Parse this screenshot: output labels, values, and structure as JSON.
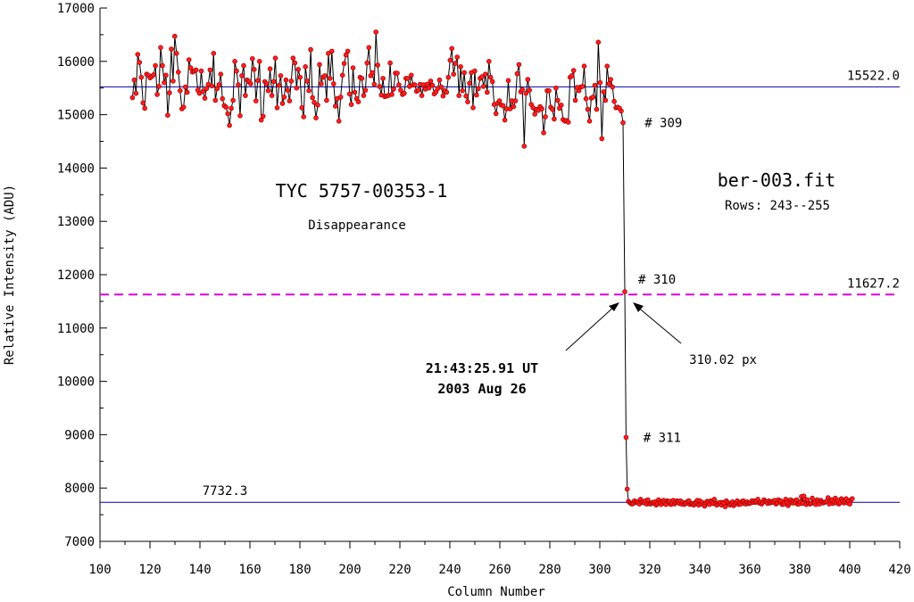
{
  "chart_data": {
    "type": "line",
    "title": "TYC 5757-00353-1",
    "subtitle": "Disappearance",
    "file_label": "ber-003.fit",
    "rows_label": "Rows: 243--255",
    "xlabel": "Column Number",
    "ylabel": "Relative Intensity (ADU)",
    "xlim": [
      100,
      420
    ],
    "ylim": [
      7000,
      17000
    ],
    "xticks": [
      100,
      120,
      140,
      160,
      180,
      200,
      220,
      240,
      260,
      280,
      300,
      320,
      340,
      360,
      380,
      400,
      420
    ],
    "yticks": [
      7000,
      8000,
      9000,
      10000,
      11000,
      12000,
      13000,
      14000,
      15000,
      16000,
      17000
    ],
    "grid": false,
    "series": [
      {
        "x_start": 113,
        "x_step": 1,
        "values": [
          15320,
          15650,
          15400,
          16130,
          15980,
          15700,
          15220,
          15120,
          15760,
          15740,
          15690,
          15720,
          15750,
          15920,
          15380,
          15530,
          16260,
          15920,
          15600,
          15740,
          14990,
          15410,
          16230,
          15630,
          16470,
          16150,
          15800,
          15450,
          15110,
          15140,
          15520,
          15420,
          16030,
          15880,
          15800,
          15820,
          15840,
          15460,
          15400,
          15820,
          15440,
          15310,
          15490,
          15570,
          15840,
          15540,
          16150,
          15270,
          15490,
          15560,
          15760,
          15300,
          15170,
          15140,
          15020,
          14800,
          15120,
          15270,
          16000,
          15820,
          15560,
          14980,
          15730,
          15920,
          15360,
          15650,
          15620,
          15580,
          16050,
          15850,
          15260,
          15640,
          16000,
          14900,
          14970,
          15620,
          15580,
          15450,
          15860,
          15360,
          15620,
          16060,
          15130,
          15550,
          15730,
          15210,
          15330,
          15650,
          15460,
          15260,
          15630,
          16060,
          15970,
          15500,
          15850,
          15700,
          15130,
          14960,
          15900,
          15630,
          15450,
          16220,
          15320,
          15230,
          14940,
          15180,
          15940,
          15580,
          15700,
          15730,
          15270,
          16150,
          15680,
          16190,
          15580,
          15160,
          15300,
          14880,
          15330,
          15740,
          15960,
          16120,
          16190,
          15390,
          15190,
          15880,
          15420,
          15300,
          15240,
          15700,
          15680,
          15360,
          15460,
          15970,
          16260,
          15730,
          15790,
          15570,
          16550,
          15930,
          15530,
          15370,
          15680,
          15340,
          15350,
          15360,
          15970,
          15380,
          15480,
          15780,
          15780,
          15560,
          15460,
          15380,
          15400,
          15680,
          15680,
          15530,
          15740,
          15560,
          15560,
          15440,
          15460,
          15570,
          15360,
          15560,
          15480,
          15570,
          15500,
          15630,
          15550,
          15390,
          15430,
          15490,
          15650,
          15520,
          15350,
          15450,
          15420,
          15700,
          16020,
          16240,
          15760,
          15960,
          16080,
          15360,
          15900,
          15450,
          15790,
          15350,
          15240,
          15590,
          15790,
          15130,
          15820,
          15370,
          15490,
          15680,
          15710,
          15530,
          15760,
          15420,
          16000,
          15700,
          15620,
          15190,
          15020,
          15220,
          15260,
          15180,
          15170,
          14900,
          15110,
          15640,
          15110,
          15260,
          15150,
          15260,
          15770,
          15940,
          15430,
          15470,
          14410,
          15400,
          15660,
          15460,
          15190,
          15130,
          15010,
          15100,
          15080,
          15150,
          15110,
          14660,
          14960,
          15450,
          15450,
          15140,
          15100,
          14920,
          15500,
          15270,
          15120,
          15180,
          14910,
          14880,
          14890,
          14860,
          15700,
          15730,
          15830,
          15270,
          15510,
          15450,
          15520,
          15530,
          15910,
          15300,
          15100,
          14880,
          15310,
          15330,
          15550,
          15100,
          16360,
          15600,
          14550,
          15430,
          15270,
          15910,
          15580,
          15660,
          15520,
          15250,
          15130,
          15140,
          15120,
          15070,
          14850,
          11680,
          8950,
          7980,
          7750,
          7730,
          7710,
          7700,
          7710,
          7760,
          7730,
          7740,
          7720,
          7700,
          7790,
          7730,
          7740,
          7720,
          7760,
          7700,
          7780,
          7710,
          7700,
          7720,
          7730,
          7710,
          7740,
          7680,
          7710,
          7780,
          7720,
          7690,
          7740,
          7770,
          7730,
          7690,
          7760,
          7740,
          7750,
          7690,
          7720,
          7770,
          7700,
          7730,
          7760,
          7740,
          7710,
          7760,
          7700,
          7730,
          7690,
          7720,
          7710,
          7750,
          7760,
          7690,
          7710,
          7700,
          7680,
          7720,
          7740,
          7770,
          7680,
          7760,
          7700,
          7730,
          7690,
          7660,
          7720,
          7750,
          7730,
          7690,
          7760,
          7740,
          7710,
          7790,
          7700,
          7680,
          7720,
          7700,
          7730,
          7680,
          7730,
          7720,
          7650,
          7760,
          7730,
          7700,
          7680,
          7710,
          7740,
          7670,
          7700,
          7730,
          7760,
          7690,
          7720,
          7700,
          7750,
          7760,
          7710,
          7700,
          7740,
          7710,
          7710,
          7720,
          7760,
          7730,
          7760,
          7730,
          7740,
          7790,
          7720,
          7730,
          7700,
          7730,
          7780,
          7750,
          7740,
          7710,
          7760,
          7720,
          7730,
          7750,
          7730,
          7770,
          7700,
          7720,
          7780,
          7740,
          7760,
          7690,
          7720,
          7700,
          7790,
          7730,
          7670,
          7710,
          7780,
          7730,
          7720,
          7760,
          7720,
          7780,
          7700,
          7700,
          7740,
          7840,
          7710,
          7850,
          7790,
          7690,
          7780,
          7710,
          7700,
          7710,
          7810,
          7720,
          7730,
          7690,
          7780,
          7740,
          7700,
          7770,
          7740,
          7720,
          7730,
          7740,
          7750,
          7820,
          7700,
          7760,
          7780,
          7710,
          7740,
          7810,
          7720,
          7770,
          7700,
          7730,
          7800,
          7760,
          7720,
          7740,
          7800,
          7720,
          7750,
          7700,
          7780,
          7800
        ],
        "x_step_effective": 0.65
      }
    ],
    "reference_lines": [
      {
        "value": 15522.0,
        "label": "15522.0",
        "color": "#0000aa",
        "style": "solid"
      },
      {
        "value": 11627.2,
        "label": "11627.2",
        "color": "#dd00dd",
        "style": "dashed"
      },
      {
        "value": 7732.3,
        "label": "7732.3",
        "color": "#0000aa",
        "style": "solid"
      }
    ],
    "point_labels": [
      {
        "text": "# 309",
        "x": 309,
        "y": 14850
      },
      {
        "text": "# 310",
        "x": 310,
        "y": 11680
      },
      {
        "text": "# 311",
        "x": 311,
        "y": 8950
      }
    ],
    "annotations": {
      "timestamp": "21:43:25.91 UT",
      "date": "2003 Aug 26",
      "pixel_value": "310.02 px"
    },
    "colors": {
      "line": "#000000",
      "point_fill": "#ff2020",
      "point_stroke": "#aa0000",
      "reference_blue": "#0000aa",
      "reference_magenta": "#dd00dd"
    }
  }
}
